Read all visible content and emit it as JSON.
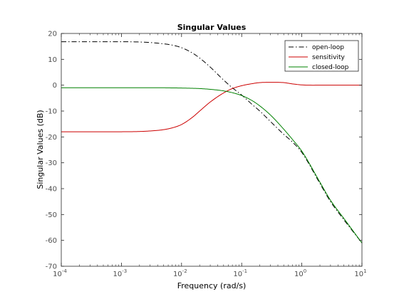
{
  "chart_data": {
    "type": "line",
    "title": "Singular Values",
    "xlabel": "Frequency (rad/s)",
    "ylabel": "Singular Values (dB)",
    "xscale": "log",
    "xlim": [
      0.0001,
      10
    ],
    "ylim": [
      -70,
      20
    ],
    "xticks": [
      0.0001,
      0.001,
      0.01,
      0.1,
      1,
      10
    ],
    "xtick_labels": [
      {
        "base": "10",
        "exp": "-4"
      },
      {
        "base": "10",
        "exp": "-3"
      },
      {
        "base": "10",
        "exp": "-2"
      },
      {
        "base": "10",
        "exp": "-1"
      },
      {
        "base": "10",
        "exp": "0"
      },
      {
        "base": "10",
        "exp": "1"
      }
    ],
    "yticks": [
      20,
      10,
      0,
      -10,
      -20,
      -30,
      -40,
      -50,
      -60,
      -70
    ],
    "ytick_labels": [
      "20",
      "10",
      "0",
      "-10",
      "-20",
      "-30",
      "-40",
      "-50",
      "-60",
      "-70"
    ],
    "grid": false,
    "legend_position": "top-right",
    "series": [
      {
        "name": "open-loop",
        "color": "#000000",
        "dash": "dash-dot",
        "x": [
          0.0001,
          0.0005,
          0.001,
          0.002,
          0.003,
          0.005,
          0.007,
          0.01,
          0.015,
          0.02,
          0.03,
          0.05,
          0.07,
          0.1,
          0.15,
          0.2,
          0.3,
          0.5,
          0.7,
          1,
          2,
          3,
          5,
          10
        ],
        "y": [
          16.8,
          16.8,
          16.8,
          16.7,
          16.5,
          16.0,
          15.5,
          14.5,
          12.5,
          10.5,
          7.0,
          2.0,
          -1.0,
          -3.8,
          -7.5,
          -10.0,
          -14.0,
          -19.0,
          -22.0,
          -26.0,
          -38.0,
          -45.0,
          -52.0,
          -61.0
        ]
      },
      {
        "name": "sensitivity",
        "color": "#cc0000",
        "dash": "solid",
        "x": [
          0.0001,
          0.0005,
          0.001,
          0.002,
          0.003,
          0.005,
          0.007,
          0.01,
          0.015,
          0.02,
          0.03,
          0.05,
          0.07,
          0.1,
          0.15,
          0.2,
          0.3,
          0.5,
          0.7,
          1,
          2,
          3,
          5,
          10
        ],
        "y": [
          -18.0,
          -18.0,
          -18.0,
          -17.9,
          -17.7,
          -17.2,
          -16.5,
          -15.2,
          -12.5,
          -10.0,
          -6.5,
          -3.0,
          -1.3,
          -0.2,
          0.6,
          1.0,
          1.1,
          1.0,
          0.5,
          0.1,
          0.0,
          0.0,
          0.0,
          0.0
        ]
      },
      {
        "name": "closed-loop",
        "color": "#008000",
        "dash": "solid",
        "x": [
          0.0001,
          0.0005,
          0.001,
          0.002,
          0.003,
          0.005,
          0.007,
          0.01,
          0.015,
          0.02,
          0.03,
          0.05,
          0.07,
          0.1,
          0.15,
          0.2,
          0.3,
          0.5,
          0.7,
          1,
          2,
          3,
          5,
          10
        ],
        "y": [
          -1.0,
          -1.0,
          -1.0,
          -1.0,
          -1.0,
          -1.0,
          -1.05,
          -1.1,
          -1.2,
          -1.3,
          -1.6,
          -2.2,
          -2.9,
          -4.0,
          -6.0,
          -8.0,
          -11.5,
          -17.0,
          -21.0,
          -25.5,
          -37.5,
          -44.5,
          -51.5,
          -61.0
        ]
      }
    ]
  }
}
